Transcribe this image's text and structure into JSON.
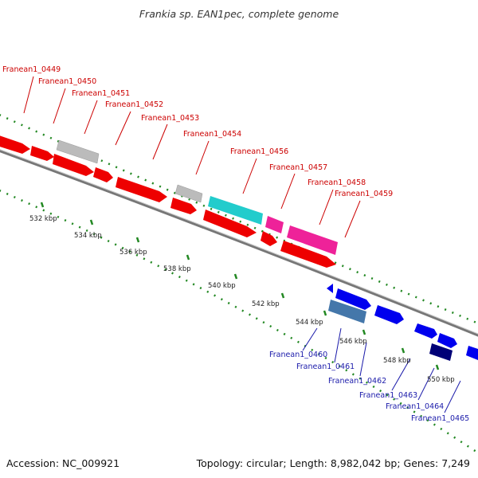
{
  "title": "Frankia sp. EAN1pec, complete genome",
  "footer": {
    "accession": "Accession: NC_009921",
    "topology": "Topology: circular; Length: 8,982,042 bp; Genes: 7,249"
  },
  "colors": {
    "gene_red": "#ee0000",
    "gene_blue": "#0000ee",
    "gene_grey": "#bbbbbb",
    "gene_cyan": "#22cccc",
    "gene_pink": "#ee2299",
    "gene_steel": "#4477aa",
    "gene_navy": "#000077",
    "backbone": "#888888",
    "tick_green": "#228822",
    "label_red": "#cc0000",
    "label_blue": "#1a1aaa"
  },
  "scale_ticks": [
    "532 kbp",
    "534 kbp",
    "536 kbp",
    "538 kbp",
    "540 kbp",
    "542 kbp",
    "544 kbp",
    "546 kbp",
    "548 kbp",
    "550 kbp"
  ],
  "gene_labels_top": [
    "Franean1_0449",
    "Franean1_0450",
    "Franean1_0451",
    "Franean1_0452",
    "Franean1_0453",
    "Franean1_0454",
    "Franean1_0456",
    "Franean1_0457",
    "Franean1_0458",
    "Franean1_0459"
  ],
  "gene_labels_bottom": [
    "Franean1_0460",
    "Franean1_0461",
    "Franean1_0462",
    "Franean1_0463",
    "Franean1_0464",
    "Franean1_0465"
  ]
}
